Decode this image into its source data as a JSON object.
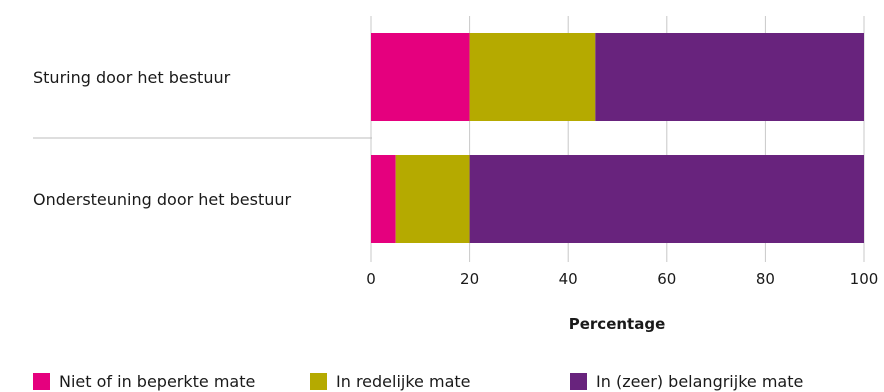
{
  "chart_data": {
    "type": "bar",
    "orientation": "horizontal",
    "stacked": true,
    "categories": [
      "Sturing door het bestuur",
      "Ondersteuning door het bestuur"
    ],
    "series": [
      {
        "name": "Niet of in beperkte mate",
        "color": "#e5007e",
        "values": [
          20,
          5
        ]
      },
      {
        "name": "In redelijke mate",
        "color": "#b5aa00",
        "values": [
          25.5,
          15
        ]
      },
      {
        "name": "In (zeer) belangrijke mate",
        "color": "#68237d",
        "values": [
          54.5,
          80
        ]
      }
    ],
    "xlabel": "Percentage",
    "ylabel": "",
    "xlim": [
      0,
      100
    ],
    "xticks": [
      "0",
      "20",
      "40",
      "60",
      "80",
      "100"
    ],
    "grid": "vertical",
    "legend": "bottom"
  }
}
